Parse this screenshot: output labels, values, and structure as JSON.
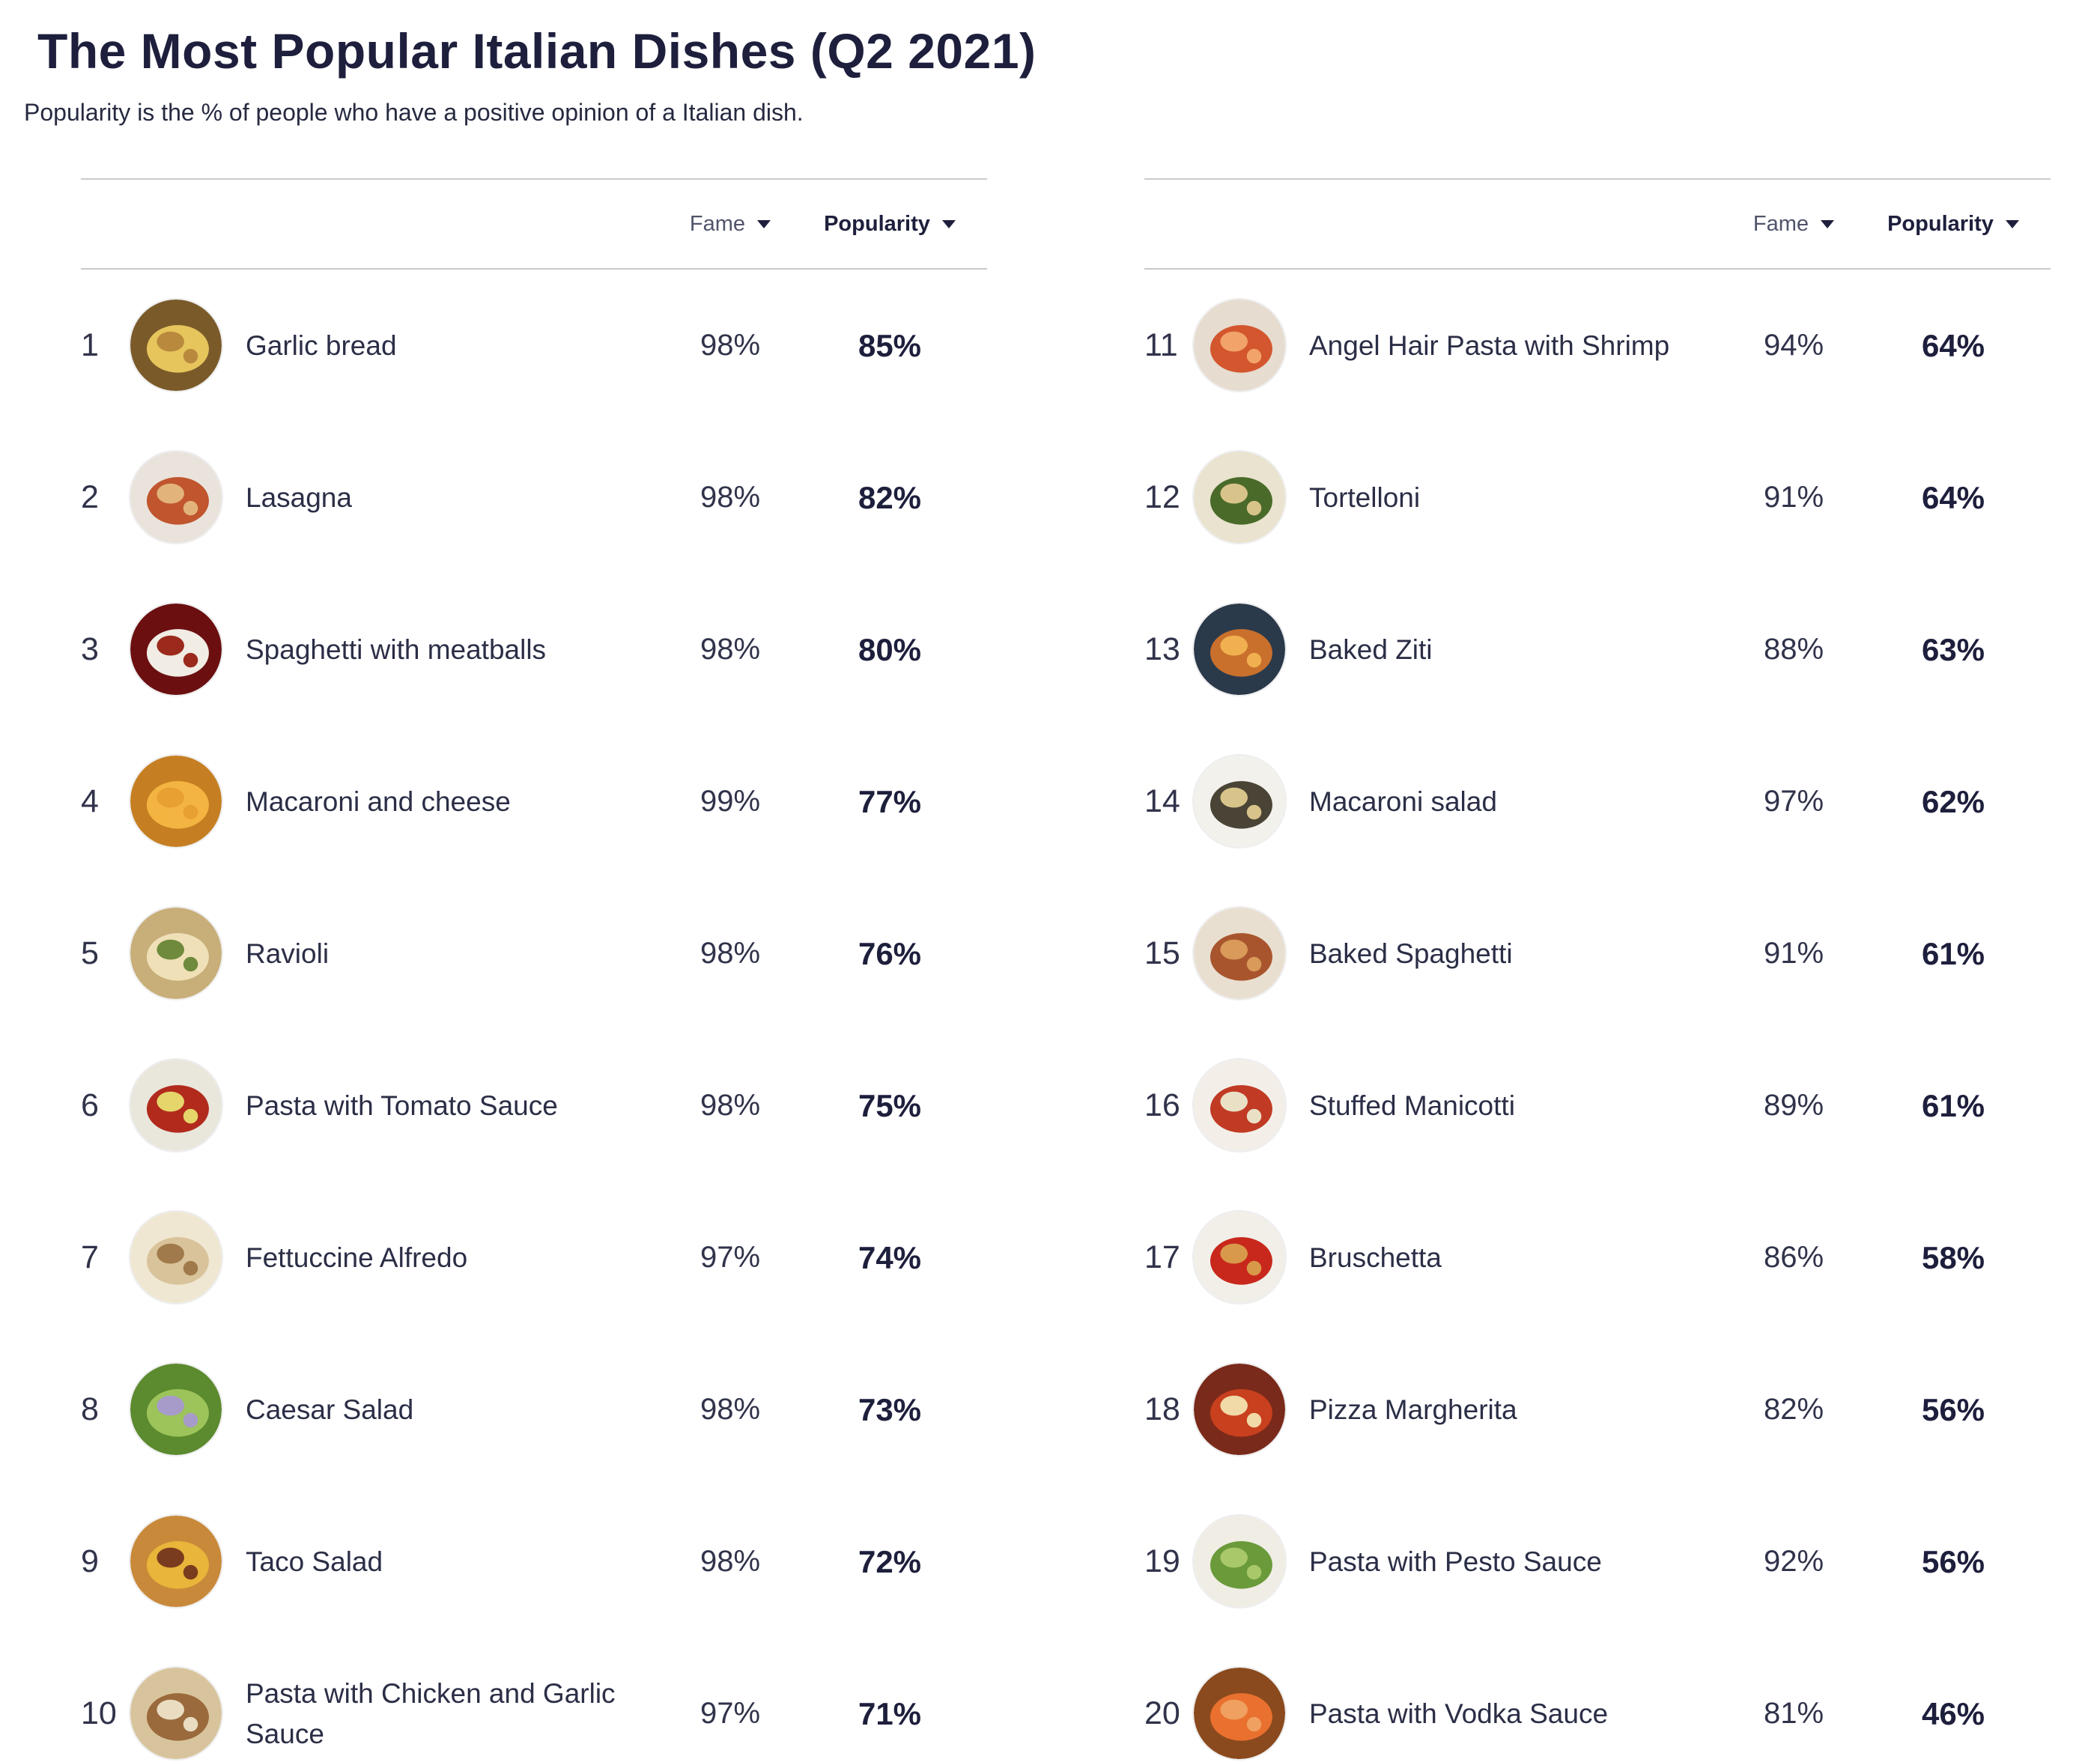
{
  "title": "The Most Popular Italian Dishes (Q2 2021)",
  "subtitle": "Popularity is the % of people who have a positive opinion of a Italian dish.",
  "columns": {
    "fame": "Fame",
    "popularity": "Popularity"
  },
  "left_rows": [
    {
      "rank": "1",
      "dish": "Garlic bread",
      "fame": "98%",
      "popularity": "85%",
      "image": "garlic-bread-image",
      "colors": [
        "#7b5a2a",
        "#e6c65c",
        "#b98a3e"
      ]
    },
    {
      "rank": "2",
      "dish": "Lasagna",
      "fame": "98%",
      "popularity": "82%",
      "image": "lasagna-image",
      "colors": [
        "#e9e3dc",
        "#c0552e",
        "#e2b37a"
      ]
    },
    {
      "rank": "3",
      "dish": "Spaghetti with meatballs",
      "fame": "98%",
      "popularity": "80%",
      "image": "spaghetti-with-meatballs-image",
      "colors": [
        "#6b0f10",
        "#f1ece4",
        "#9b2a1c"
      ]
    },
    {
      "rank": "4",
      "dish": "Macaroni and cheese",
      "fame": "99%",
      "popularity": "77%",
      "image": "macaroni-and-cheese-image",
      "colors": [
        "#c57f22",
        "#f3b441",
        "#e8a032"
      ]
    },
    {
      "rank": "5",
      "dish": "Ravioli",
      "fame": "98%",
      "popularity": "76%",
      "image": "ravioli-image",
      "colors": [
        "#c8ae78",
        "#efe0b8",
        "#6f8a3c"
      ]
    },
    {
      "rank": "6",
      "dish": "Pasta with Tomato Sauce",
      "fame": "98%",
      "popularity": "75%",
      "image": "pasta-with-tomato-sauce-image",
      "colors": [
        "#e9e6dc",
        "#b12a1c",
        "#e6d56a"
      ]
    },
    {
      "rank": "7",
      "dish": "Fettuccine Alfredo",
      "fame": "97%",
      "popularity": "74%",
      "image": "fettuccine-alfredo-image",
      "colors": [
        "#efe7d2",
        "#d9c39a",
        "#a07a4a"
      ]
    },
    {
      "rank": "8",
      "dish": "Caesar Salad",
      "fame": "98%",
      "popularity": "73%",
      "image": "caesar-salad-image",
      "colors": [
        "#5c8a2e",
        "#9cc45a",
        "#a79bc9"
      ]
    },
    {
      "rank": "9",
      "dish": "Taco Salad",
      "fame": "98%",
      "popularity": "72%",
      "image": "taco-salad-image",
      "colors": [
        "#c9893a",
        "#e9b53a",
        "#7a3c1e"
      ]
    },
    {
      "rank": "10",
      "dish": "Pasta with Chicken and Garlic Sauce",
      "fame": "97%",
      "popularity": "71%",
      "image": "pasta-with-chicken-and-garlic-sauce-image",
      "colors": [
        "#d8c49c",
        "#9a6a3c",
        "#e9dcc0"
      ]
    }
  ],
  "right_rows": [
    {
      "rank": "11",
      "dish": "Angel Hair Pasta with Shrimp",
      "fame": "94%",
      "popularity": "64%",
      "image": "angel-hair-pasta-with-shrimp-image",
      "colors": [
        "#e6dccf",
        "#d3562e",
        "#f2a36a"
      ]
    },
    {
      "rank": "12",
      "dish": "Tortelloni",
      "fame": "91%",
      "popularity": "64%",
      "image": "tortelloni-image",
      "colors": [
        "#e9e3cf",
        "#4a6a2a",
        "#d8c48a"
      ]
    },
    {
      "rank": "13",
      "dish": "Baked Ziti",
      "fame": "88%",
      "popularity": "63%",
      "image": "baked-ziti-image",
      "colors": [
        "#2b3a4a",
        "#c9702c",
        "#f0b050"
      ]
    },
    {
      "rank": "14",
      "dish": "Macaroni salad",
      "fame": "97%",
      "popularity": "62%",
      "image": "macaroni-salad-image",
      "colors": [
        "#f3f1ec",
        "#4a4436",
        "#d8c48a"
      ]
    },
    {
      "rank": "15",
      "dish": "Baked Spaghetti",
      "fame": "91%",
      "popularity": "61%",
      "image": "baked-spaghetti-image",
      "colors": [
        "#e9dfd0",
        "#a8552e",
        "#d99a5a"
      ]
    },
    {
      "rank": "16",
      "dish": "Stuffed Manicotti",
      "fame": "89%",
      "popularity": "61%",
      "image": "stuffed-manicotti-image",
      "colors": [
        "#f3efe8",
        "#c03a24",
        "#e9e0c6"
      ]
    },
    {
      "rank": "17",
      "dish": "Bruschetta",
      "fame": "86%",
      "popularity": "58%",
      "image": "bruschetta-image",
      "colors": [
        "#f2efe9",
        "#c8281c",
        "#d89a4a"
      ]
    },
    {
      "rank": "18",
      "dish": "Pizza Margherita",
      "fame": "82%",
      "popularity": "56%",
      "image": "pizza-margherita-image",
      "colors": [
        "#7a2a1a",
        "#c8401e",
        "#f1d9a8"
      ]
    },
    {
      "rank": "19",
      "dish": "Pasta with Pesto Sauce",
      "fame": "92%",
      "popularity": "56%",
      "image": "pasta-with-pesto-sauce-image",
      "colors": [
        "#f0ede4",
        "#6a9a3a",
        "#a9c86a"
      ]
    },
    {
      "rank": "20",
      "dish": "Pasta with Vodka Sauce",
      "fame": "81%",
      "popularity": "46%",
      "image": "pasta-with-vodka-sauce-image",
      "colors": [
        "#8a4a1e",
        "#e9702e",
        "#f0a060"
      ]
    }
  ]
}
